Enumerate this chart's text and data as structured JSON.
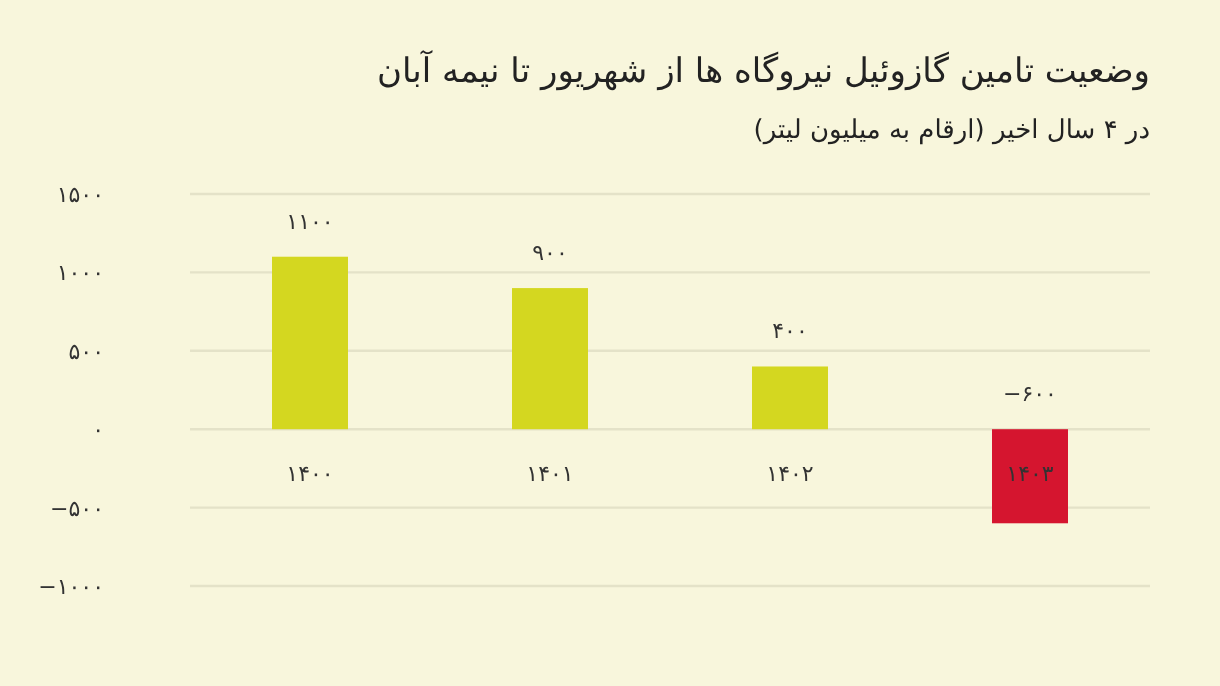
{
  "chart_data": {
    "type": "bar",
    "title": "وضعیت تامین گازوئیل نیروگاه ها از شهریور تا نیمه آبان",
    "subtitle": "در ۴ سال اخیر (ارقام به میلیون لیتر)",
    "categories": [
      "۱۴۰۰",
      "۱۴۰۱",
      "۱۴۰۲",
      "۱۴۰۳"
    ],
    "values": [
      1100,
      900,
      400,
      -600
    ],
    "colors": [
      "#d4d720",
      "#d4d720",
      "#d4d720",
      "#d5152f"
    ],
    "value_labels": [
      "۱۱۰۰",
      "۹۰۰",
      "۴۰۰",
      "−۶۰۰"
    ],
    "ylim": [
      -1000,
      1500
    ],
    "yticks": [
      {
        "value": -1000,
        "label": "−۱۰۰۰"
      },
      {
        "value": -500,
        "label": "−۵۰۰"
      },
      {
        "value": 0,
        "label": "۰"
      },
      {
        "value": 500,
        "label": "۵۰۰"
      },
      {
        "value": 1000,
        "label": "۱۰۰۰"
      },
      {
        "value": 1500,
        "label": "۱۵۰۰"
      }
    ],
    "grid": "y"
  }
}
